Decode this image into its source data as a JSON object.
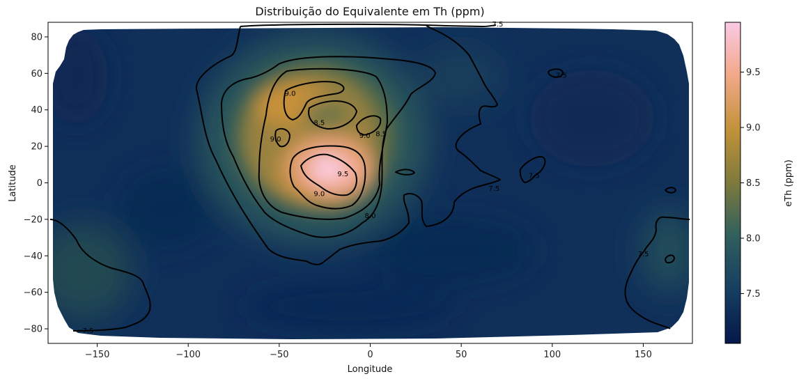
{
  "chart_data": {
    "type": "heatmap",
    "title": "Distribuição do Equivalente em Th (ppm)",
    "xlabel": "Longitude",
    "ylabel": "Latitude",
    "xlim": [
      -177,
      177
    ],
    "ylim": [
      -88,
      88
    ],
    "xticks": [
      -150,
      -100,
      -50,
      0,
      50,
      100,
      150
    ],
    "yticks": [
      -80,
      -60,
      -40,
      -20,
      0,
      20,
      40,
      60,
      80
    ],
    "grid": false,
    "colorbar": {
      "label": "eTh (ppm)",
      "range": [
        7.05,
        9.95
      ],
      "ticks": [
        7.5,
        8.0,
        8.5,
        9.0,
        9.5
      ],
      "colormap": [
        "#05184a",
        "#163e62",
        "#2f5f5e",
        "#7d7a3c",
        "#c2923a",
        "#f2a888",
        "#fbc9e6"
      ]
    },
    "contour_levels": [
      7.5,
      8.0,
      8.5,
      9.0,
      9.5
    ],
    "contour_labels": [
      {
        "text": "7.5",
        "lon": 70,
        "lat": 87
      },
      {
        "text": "7.5",
        "lon": 105,
        "lat": 59
      },
      {
        "text": "7.5",
        "lon": 68,
        "lat": -3
      },
      {
        "text": "7.5",
        "lon": 90,
        "lat": 4
      },
      {
        "text": "7.5",
        "lon": 150,
        "lat": -39
      },
      {
        "text": "7.5",
        "lon": -155,
        "lat": -81
      },
      {
        "text": "8.0",
        "lon": 0,
        "lat": -18
      },
      {
        "text": "8.5",
        "lon": -28,
        "lat": 33
      },
      {
        "text": "8.5",
        "lon": 6,
        "lat": 27
      },
      {
        "text": "9.0",
        "lon": -44,
        "lat": 49
      },
      {
        "text": "9.0",
        "lon": -52,
        "lat": 24
      },
      {
        "text": "9.0",
        "lon": -3,
        "lat": 26
      },
      {
        "text": "9.0",
        "lon": -28,
        "lat": -6
      },
      {
        "text": "9.5",
        "lon": -15,
        "lat": 5
      }
    ]
  }
}
